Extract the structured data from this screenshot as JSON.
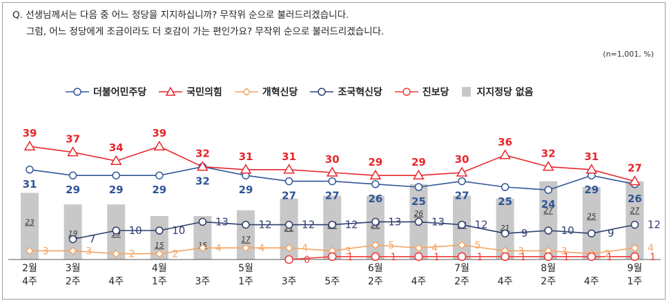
{
  "question": {
    "line1": "Q. 선생님께서는 다음 중 어느 정당을 지지하십니까? 무작위 순으로 불러드리겠습니다.",
    "line2": "그럼, 어느 정당에게 조금이라도 더 호감이 가는 편인가요? 무작위 순으로 불러드리겠습니다."
  },
  "note": "(n=1,001, %)",
  "colors": {
    "dem": "#2f5597",
    "ppp": "#e8252a",
    "reform": "#f4a460",
    "rebuild": "#2e3f6e",
    "progressive": "#ef3b3b",
    "none": "#c8c8c8"
  },
  "chart_data": {
    "type": "line",
    "categories": [
      [
        "2월",
        "4주"
      ],
      [
        "3월",
        "2주"
      ],
      [
        "4주"
      ],
      [
        "4월",
        "1주"
      ],
      [
        "3주"
      ],
      [
        "5월",
        "1주"
      ],
      [
        "3주"
      ],
      [
        "5주"
      ],
      [
        "6월",
        "2주"
      ],
      [
        "4주"
      ],
      [
        "7월",
        "2주"
      ],
      [
        "4주"
      ],
      [
        "8월",
        "2주"
      ],
      [
        "4주"
      ],
      [
        "9월",
        "1주"
      ]
    ],
    "series": [
      {
        "key": "dem",
        "name": "더불어민주당",
        "values": [
          31,
          29,
          29,
          29,
          32,
          29,
          27,
          27,
          26,
          25,
          27,
          25,
          24,
          29,
          26
        ]
      },
      {
        "key": "ppp",
        "name": "국민의힘",
        "values": [
          39,
          37,
          34,
          39,
          32,
          31,
          31,
          30,
          29,
          29,
          30,
          36,
          32,
          31,
          27
        ]
      },
      {
        "key": "reform",
        "name": "개혁신당",
        "values": [
          3,
          3,
          2,
          2,
          4,
          4,
          4,
          3,
          5,
          4,
          5,
          3,
          3,
          2,
          4
        ]
      },
      {
        "key": "rebuild",
        "name": "조국혁신당",
        "values": [
          null,
          7,
          10,
          10,
          13,
          12,
          12,
          12,
          13,
          13,
          12,
          9,
          10,
          9,
          12
        ]
      },
      {
        "key": "progressive",
        "name": "진보당",
        "values": [
          null,
          null,
          null,
          null,
          null,
          null,
          0,
          1,
          1,
          1,
          1,
          1,
          1,
          1,
          1
        ]
      },
      {
        "key": "none",
        "name": "지지정당 없음",
        "type": "bar",
        "values": [
          23,
          19,
          19,
          15,
          15,
          17,
          21,
          22,
          22,
          26,
          22,
          21,
          27,
          25,
          27
        ]
      }
    ],
    "ylim": [
      0,
      42
    ]
  }
}
